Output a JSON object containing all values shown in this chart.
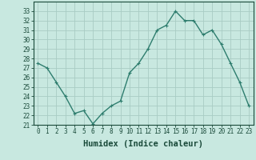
{
  "x": [
    0,
    1,
    2,
    3,
    4,
    5,
    6,
    7,
    8,
    9,
    10,
    11,
    12,
    13,
    14,
    15,
    16,
    17,
    18,
    19,
    20,
    21,
    22,
    23
  ],
  "y": [
    27.5,
    27.0,
    25.5,
    24.0,
    22.2,
    22.5,
    21.1,
    22.2,
    23.0,
    23.5,
    26.5,
    27.5,
    29.0,
    31.0,
    31.5,
    33.0,
    32.0,
    32.0,
    30.5,
    31.0,
    29.5,
    27.5,
    25.5,
    23.0
  ],
  "line_color": "#2e7d6e",
  "marker": "+",
  "marker_size": 3,
  "bg_color": "#c8e8e0",
  "grid_color": "#a8ccc4",
  "xlabel": "Humidex (Indice chaleur)",
  "ylim": [
    21,
    34
  ],
  "xlim": [
    -0.5,
    23.5
  ],
  "yticks": [
    21,
    22,
    23,
    24,
    25,
    26,
    27,
    28,
    29,
    30,
    31,
    32,
    33
  ],
  "xticks": [
    0,
    1,
    2,
    3,
    4,
    5,
    6,
    7,
    8,
    9,
    10,
    11,
    12,
    13,
    14,
    15,
    16,
    17,
    18,
    19,
    20,
    21,
    22,
    23
  ],
  "linewidth": 1.0,
  "tick_fontsize": 5.5,
  "xlabel_fontsize": 7.5
}
